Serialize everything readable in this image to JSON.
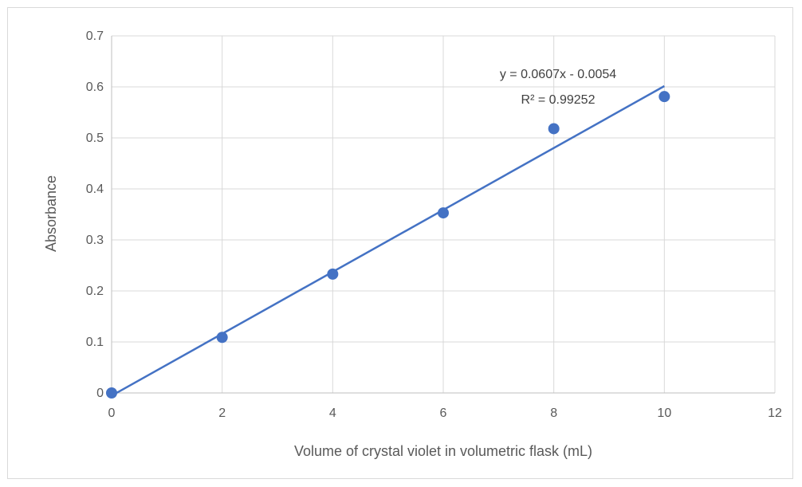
{
  "chart_data": {
    "type": "scatter",
    "title": "",
    "xlabel": "Volume of crystal violet in volumetric flask (mL)",
    "ylabel": "Absorbance",
    "xlim": [
      0,
      12
    ],
    "ylim": [
      0,
      0.7
    ],
    "xticks": [
      0,
      2,
      4,
      6,
      8,
      10,
      12
    ],
    "yticks": [
      0,
      0.1,
      0.2,
      0.3,
      0.4,
      0.5,
      0.6,
      0.7
    ],
    "grid": true,
    "legend": "none",
    "series": [
      {
        "x": [
          0,
          2,
          4,
          6,
          8,
          10
        ],
        "y": [
          0,
          0.109,
          0.233,
          0.353,
          0.518,
          0.581
        ],
        "color": "#4472c4"
      }
    ],
    "trendline": {
      "type": "linear",
      "slope": 0.0607,
      "intercept": -0.0054,
      "x_range": [
        0,
        10
      ],
      "color": "#4472c4",
      "equation_label": "y = 0.0607x - 0.0054",
      "r2_label": "R² = 0.99252"
    }
  }
}
